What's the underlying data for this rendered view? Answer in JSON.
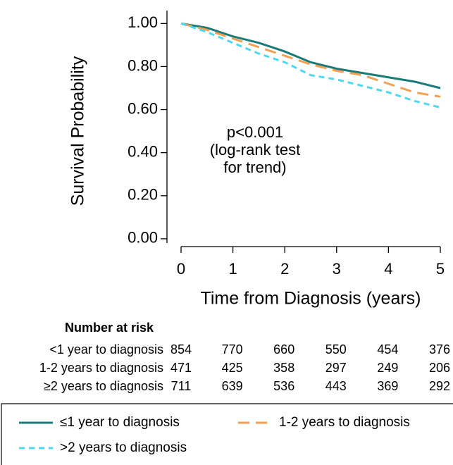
{
  "chart_data": {
    "type": "line",
    "x_label": "Time from Diagnosis (years)",
    "y_label": "Survival Probability",
    "annotation": [
      "p<0.001",
      "(log-rank test",
      "for trend)"
    ],
    "x": [
      0,
      0.5,
      1,
      1.5,
      2,
      2.5,
      3,
      3.5,
      4,
      4.5,
      5
    ],
    "xlim": [
      0,
      5
    ],
    "xticks": [
      0,
      1,
      2,
      3,
      4,
      5
    ],
    "ylim": [
      -0.02,
      1.06
    ],
    "yticks": [
      {
        "value": 0,
        "label": "0.00"
      },
      {
        "value": 0.2,
        "label": "0.20"
      },
      {
        "value": 0.4,
        "label": "0.40"
      },
      {
        "value": 0.6,
        "label": "0.60"
      },
      {
        "value": 0.8,
        "label": "0.80"
      },
      {
        "value": 1,
        "label": "1.00"
      }
    ],
    "grid": false,
    "series": [
      {
        "name": "≤1 year to diagnosis",
        "color": "#1a7a78",
        "line_style": "solid",
        "values": [
          1,
          0.98,
          0.94,
          0.91,
          0.87,
          0.82,
          0.79,
          0.77,
          0.75,
          0.73,
          0.7
        ]
      },
      {
        "name": "1-2 years to diagnosis",
        "color": "#f0a050",
        "line_style": "long-dash",
        "values": [
          1,
          0.97,
          0.93,
          0.89,
          0.85,
          0.81,
          0.78,
          0.76,
          0.72,
          0.68,
          0.66
        ]
      },
      {
        "name": ">2 years to diagnosis",
        "color": "#4dd8f2",
        "line_style": "short-dash",
        "values": [
          1,
          0.96,
          0.91,
          0.86,
          0.82,
          0.76,
          0.74,
          0.71,
          0.68,
          0.64,
          0.61
        ]
      }
    ],
    "risk_table": {
      "title": "Number at risk",
      "rows": [
        {
          "label": "<1 year to diagnosis",
          "counts": [
            854,
            770,
            660,
            550,
            454,
            376
          ]
        },
        {
          "label": "1-2 years to diagnosis",
          "counts": [
            471,
            425,
            358,
            297,
            249,
            206
          ]
        },
        {
          "label": "≥2 years to diagnosis",
          "counts": [
            711,
            639,
            536,
            443,
            369,
            292
          ]
        }
      ]
    }
  }
}
